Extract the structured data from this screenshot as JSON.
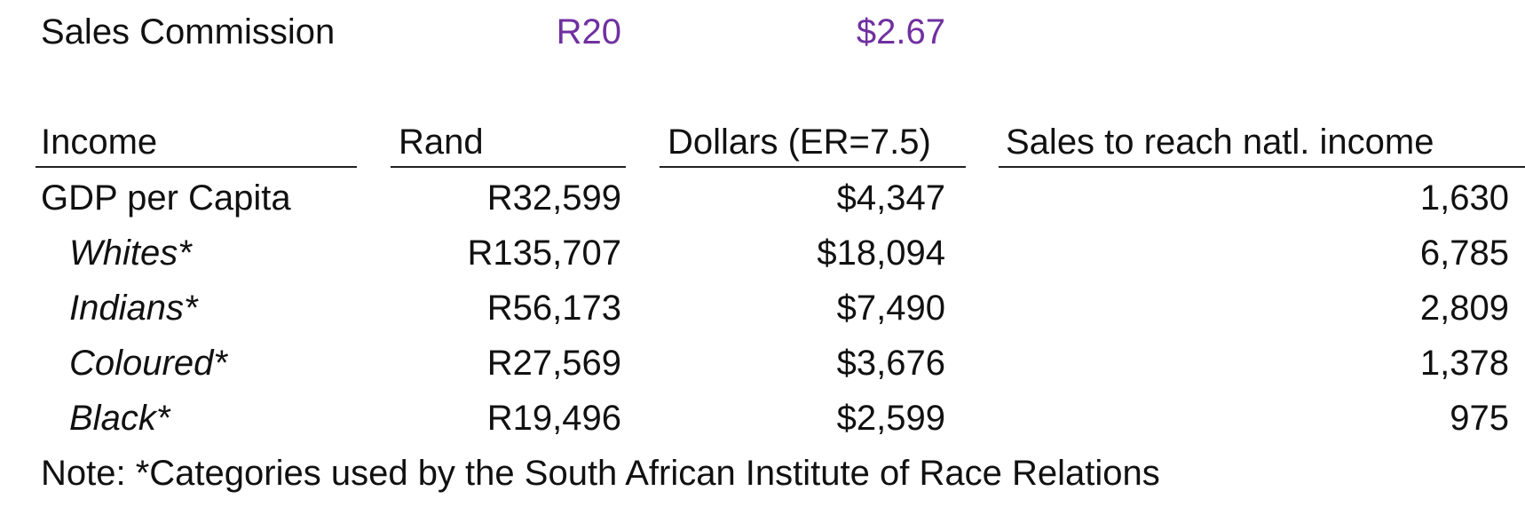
{
  "commission": {
    "label": "Sales Commission",
    "rand_value": "R20",
    "dollar_value": "$2.67",
    "value_color": "#7030a0"
  },
  "table": {
    "headers": {
      "income": "Income",
      "rand": "Rand",
      "dollars": "Dollars (ER=7.5)",
      "sales": "Sales to reach natl. income"
    },
    "rows": [
      {
        "label": "GDP per Capita",
        "rand": "R32,599",
        "dollars": "$4,347",
        "sales": "1,630",
        "italic": false
      },
      {
        "label": "Whites*",
        "rand": "R135,707",
        "dollars": "$18,094",
        "sales": "6,785",
        "italic": true
      },
      {
        "label": "Indians*",
        "rand": "R56,173",
        "dollars": "$7,490",
        "sales": "2,809",
        "italic": true
      },
      {
        "label": "Coloured*",
        "rand": "R27,569",
        "dollars": "$3,676",
        "sales": "1,378",
        "italic": true
      },
      {
        "label": "Black*",
        "rand": "R19,496",
        "dollars": "$2,599",
        "sales": "975",
        "italic": true
      }
    ]
  },
  "note": "Note: *Categories used by the South African Institute of Race Relations"
}
